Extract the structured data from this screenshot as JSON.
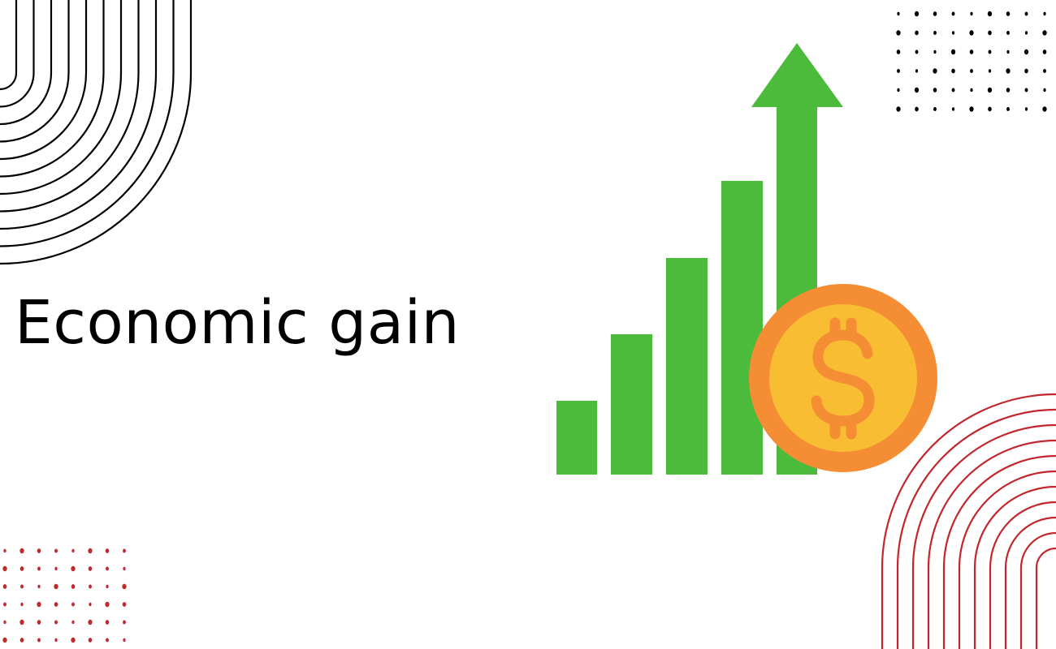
{
  "title": "Economic gain",
  "illustration": {
    "icons": [
      "rising-bar-chart-icon",
      "up-arrow-icon",
      "dollar-coin-icon"
    ],
    "colors": {
      "bars": "#4cba3a",
      "coin_outer": "#f58d35",
      "coin_inner": "#f9bd34",
      "dollar_sign": "#f58d35"
    }
  },
  "decorations": {
    "colors": {
      "top_left_arcs": "#000000",
      "top_right_dots": "#000000",
      "bottom_left_dots": "#c1272d",
      "bottom_right_arcs": "#c1272d"
    }
  }
}
